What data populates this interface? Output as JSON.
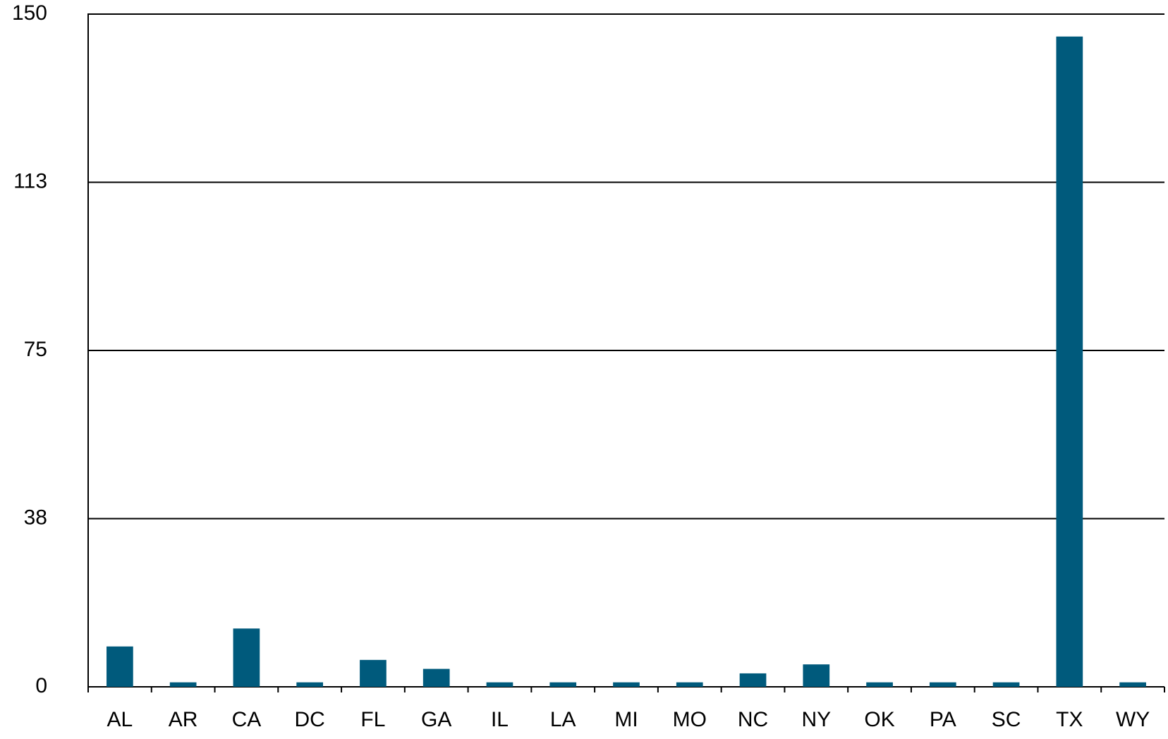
{
  "chart_data": {
    "type": "bar",
    "categories": [
      "AL",
      "AR",
      "CA",
      "DC",
      "FL",
      "GA",
      "IL",
      "LA",
      "MI",
      "MO",
      "NC",
      "NY",
      "OK",
      "PA",
      "SC",
      "TX",
      "WY"
    ],
    "values": [
      9,
      1,
      13,
      1,
      6,
      4,
      1,
      1,
      1,
      1,
      3,
      5,
      1,
      1,
      1,
      145,
      1
    ],
    "color": "#005a7c",
    "ylim": [
      0,
      150
    ],
    "yticks": [
      0,
      {
        "value": 37.5,
        "label": "38"
      },
      75,
      {
        "value": 112.5,
        "label": "113"
      },
      150
    ],
    "grid": true
  }
}
